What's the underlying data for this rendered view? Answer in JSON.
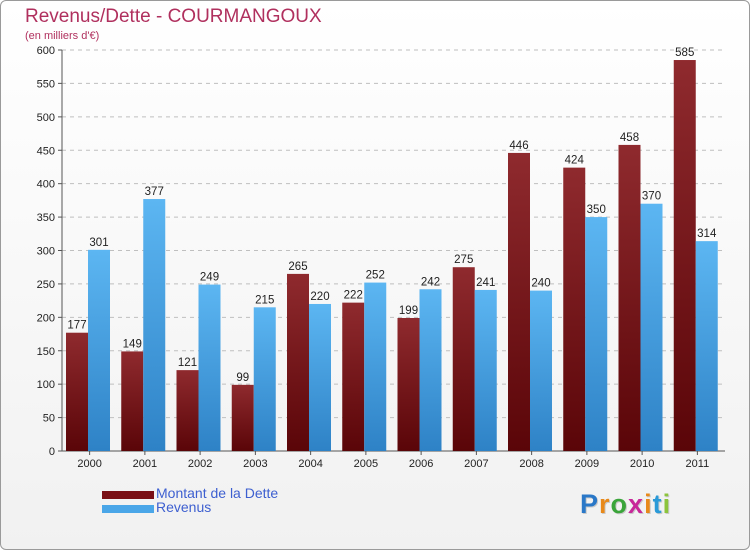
{
  "chart_data": {
    "type": "bar",
    "title": "Revenus/Dette - COURMANGOUX",
    "subtitle": "(en milliers d'€)",
    "xlabel": "",
    "ylabel": "",
    "ylim": [
      0,
      600
    ],
    "y_ticks": [
      "0",
      "50",
      "100",
      "150",
      "200",
      "250",
      "300",
      "350",
      "400",
      "450",
      "500",
      "550",
      "600"
    ],
    "grid": "horizontal dashed",
    "categories": [
      "2000",
      "2001",
      "2002",
      "2003",
      "2004",
      "2005",
      "2006",
      "2007",
      "2008",
      "2009",
      "2010",
      "2011"
    ],
    "series": [
      {
        "name": "Montant de la Dette",
        "color": "#8b1a1f",
        "values": [
          177,
          149,
          121,
          99,
          265,
          222,
          199,
          275,
          446,
          424,
          458,
          585
        ]
      },
      {
        "name": "Revenus",
        "color": "#4aa6e8",
        "values": [
          301,
          377,
          249,
          215,
          220,
          252,
          242,
          241,
          240,
          350,
          370,
          314
        ]
      }
    ],
    "legend_position": "bottom-left"
  },
  "logo": {
    "letters": [
      "P",
      "r",
      "o",
      "x",
      "i",
      "t",
      "i"
    ],
    "colors": [
      "#2a78c8",
      "#e8891a",
      "#3aa53a",
      "#c8289a",
      "#e8891a",
      "#2a9ad8",
      "#8cc43c"
    ]
  }
}
